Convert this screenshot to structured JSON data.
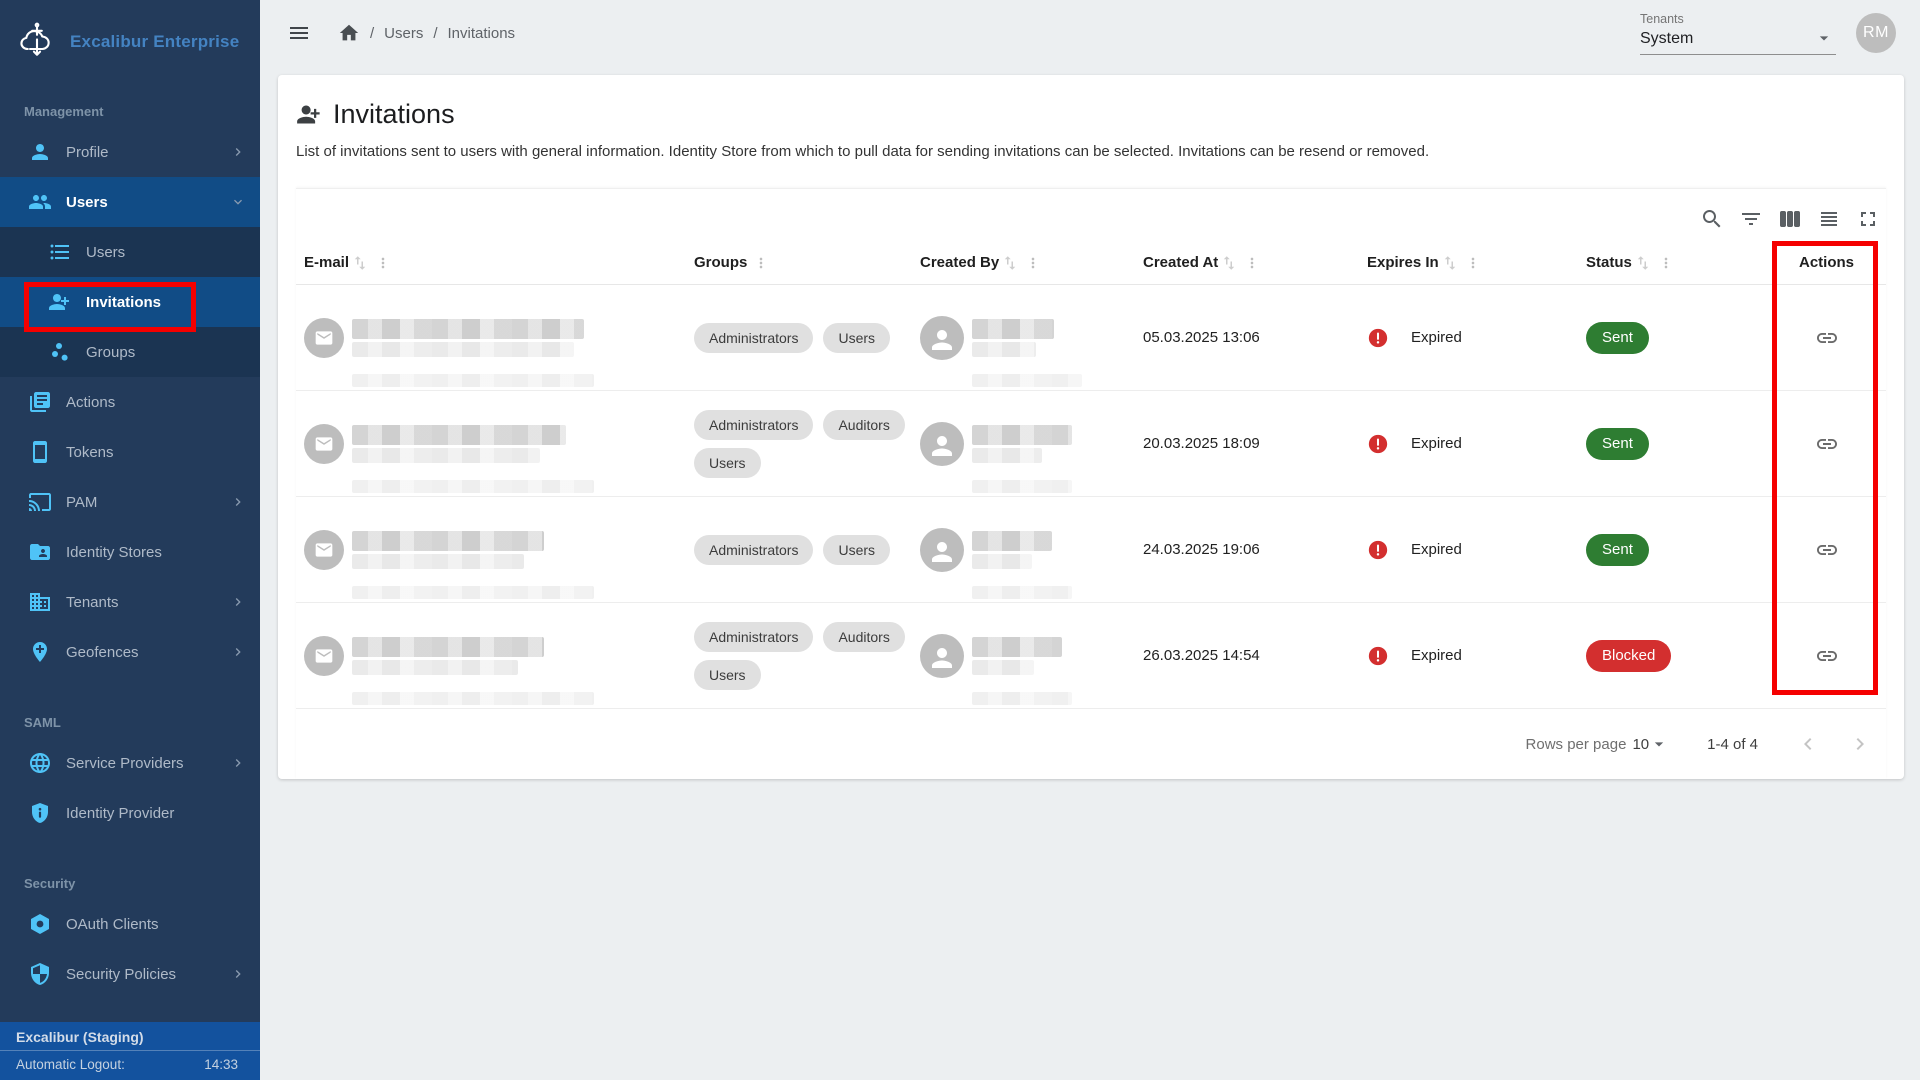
{
  "app": {
    "brand": "Excalibur Enterprise",
    "footer": {
      "env": "Excalibur (Staging)",
      "logout_label": "Automatic Logout:",
      "logout_value": "14:33"
    }
  },
  "topbar": {
    "breadcrumb": {
      "sep": "/",
      "items": [
        "Users",
        "Invitations"
      ]
    },
    "tenant": {
      "label": "Tenants",
      "value": "System"
    },
    "avatar": "RM"
  },
  "sidebar": {
    "sections": [
      {
        "label": "Management"
      },
      {
        "label": "SAML"
      },
      {
        "label": "Security"
      }
    ],
    "management": {
      "profile": "Profile",
      "users": "Users",
      "users_list": "Users",
      "invitations": "Invitations",
      "groups": "Groups",
      "actions": "Actions",
      "tokens": "Tokens",
      "pam": "PAM",
      "identity_stores": "Identity Stores",
      "tenants": "Tenants",
      "geofences": "Geofences"
    },
    "saml": {
      "service_providers": "Service Providers",
      "identity_provider": "Identity Provider"
    },
    "security": {
      "oauth_clients": "OAuth Clients",
      "security_policies": "Security Policies"
    }
  },
  "page": {
    "title": "Invitations",
    "description": "List of invitations sent to users with general information. Identity Store from which to pull data for sending invitations can be selected. Invitations can be resend or removed."
  },
  "table": {
    "toolbar_icons": [
      "search-icon",
      "filter-icon",
      "columns-icon",
      "density-icon",
      "fullscreen-icon"
    ],
    "columns": [
      {
        "label": "E-mail",
        "sort": true,
        "menu": true
      },
      {
        "label": "Groups",
        "sort": false,
        "menu": true
      },
      {
        "label": "Created By",
        "sort": true,
        "menu": true
      },
      {
        "label": "Created At",
        "sort": true,
        "menu": true
      },
      {
        "label": "Expires In",
        "sort": true,
        "menu": true
      },
      {
        "label": "Status",
        "sort": true,
        "menu": true
      },
      {
        "label": "Actions",
        "sort": false,
        "menu": false
      }
    ],
    "rows": [
      {
        "groups": [
          "Administrators",
          "Users"
        ],
        "created_at": "05.03.2025 13:06",
        "expires_in": "Expired",
        "status": "Sent",
        "status_type": "sent",
        "email_blur": [
          232,
          222,
          242
        ],
        "name_blur": [
          82,
          64,
          110
        ]
      },
      {
        "groups": [
          "Administrators",
          "Auditors",
          "Users"
        ],
        "created_at": "20.03.2025 18:09",
        "expires_in": "Expired",
        "status": "Sent",
        "status_type": "sent",
        "email_blur": [
          214,
          188,
          242
        ],
        "name_blur": [
          100,
          70,
          100
        ]
      },
      {
        "groups": [
          "Administrators",
          "Users"
        ],
        "created_at": "24.03.2025 19:06",
        "expires_in": "Expired",
        "status": "Sent",
        "status_type": "sent",
        "email_blur": [
          192,
          172,
          242
        ],
        "name_blur": [
          80,
          60,
          100
        ]
      },
      {
        "groups": [
          "Administrators",
          "Auditors",
          "Users"
        ],
        "created_at": "26.03.2025 14:54",
        "expires_in": "Expired",
        "status": "Blocked",
        "status_type": "blocked",
        "email_blur": [
          192,
          166,
          242
        ],
        "name_blur": [
          90,
          62,
          100
        ]
      }
    ],
    "pagination": {
      "label": "Rows per page",
      "value": "10",
      "range": "1-4 of 4"
    }
  },
  "colors": {
    "sidebar_bg": "#233B5B",
    "submenu_bg": "#1B3452",
    "active_item": "#114C86",
    "footer_bg": "#13529E",
    "icon_blue": "#4FC3F7",
    "brand_blue": "#4483C2",
    "page_bg": "#ECEFF1",
    "status_sent": "#2E7D32",
    "status_blocked": "#D32F2F",
    "expired_icon": "#D32F2F",
    "chip_bg": "#E0E0E0",
    "annotation_red": "#F50000"
  }
}
